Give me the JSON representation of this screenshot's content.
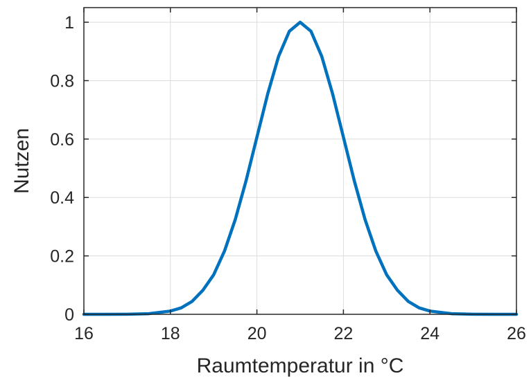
{
  "chart_data": {
    "type": "line",
    "title": "",
    "xlabel": "Raumtemperatur in °C",
    "ylabel": "Nutzen",
    "xlim": [
      16,
      26
    ],
    "ylim": [
      0,
      1.05
    ],
    "xticks": [
      16,
      18,
      20,
      22,
      24,
      26
    ],
    "xtick_labels": [
      "16",
      "18",
      "20",
      "22",
      "24",
      "26"
    ],
    "yticks": [
      0,
      0.2,
      0.4,
      0.6,
      0.8,
      1
    ],
    "ytick_labels": [
      "0",
      "0.2",
      "0.4",
      "0.6",
      "0.8",
      "1"
    ],
    "grid": true,
    "box": true,
    "series": [
      {
        "color": "#0072BD",
        "x": [
          16,
          16.5,
          17,
          17.5,
          18,
          18.25,
          18.5,
          18.75,
          19,
          19.25,
          19.5,
          19.75,
          20,
          20.25,
          20.5,
          20.75,
          21,
          21.25,
          21.5,
          21.75,
          22,
          22.25,
          22.5,
          22.75,
          23,
          23.25,
          23.5,
          23.75,
          24,
          24.5,
          25,
          25.5,
          26
        ],
        "y": [
          0.0,
          0.0,
          0.0003,
          0.0022,
          0.0111,
          0.0221,
          0.0439,
          0.0821,
          0.1353,
          0.2163,
          0.3247,
          0.4578,
          0.6065,
          0.7548,
          0.8825,
          0.9692,
          1.0,
          0.9692,
          0.8825,
          0.7548,
          0.6065,
          0.4578,
          0.3247,
          0.2163,
          0.1353,
          0.0821,
          0.0439,
          0.0221,
          0.0111,
          0.0022,
          0.0003,
          0.0,
          0.0
        ]
      }
    ]
  }
}
